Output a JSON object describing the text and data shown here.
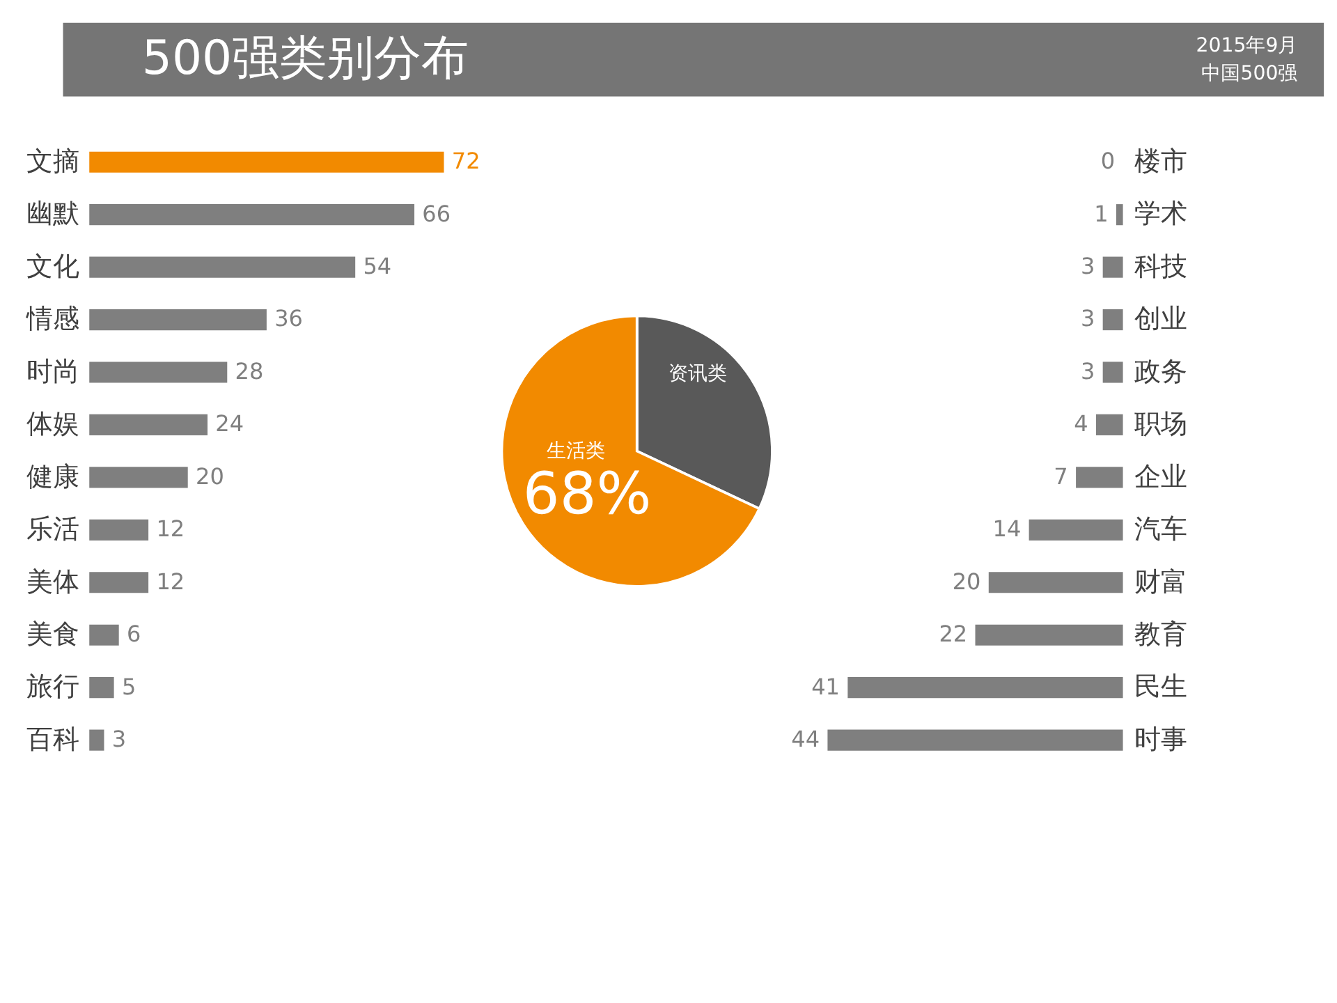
{
  "chart_data": [
    {
      "type": "bar",
      "orientation": "horizontal",
      "title": "500强类别分布",
      "annotations": [
        "2015年9月",
        "中国500强"
      ],
      "categories": [
        "文摘",
        "幽默",
        "文化",
        "情感",
        "时尚",
        "体娱",
        "健康",
        "乐活",
        "美体",
        "美食",
        "旅行",
        "百科"
      ],
      "values": [
        72,
        66,
        54,
        36,
        28,
        24,
        20,
        12,
        12,
        6,
        5,
        3
      ],
      "colors": [
        "#f28a00",
        "#7f7f7f",
        "#7f7f7f",
        "#7f7f7f",
        "#7f7f7f",
        "#7f7f7f",
        "#7f7f7f",
        "#7f7f7f",
        "#7f7f7f",
        "#7f7f7f",
        "#7f7f7f",
        "#7f7f7f"
      ],
      "tick_labels": "y",
      "data_labels": true
    },
    {
      "type": "pie",
      "categories": [
        "资讯类",
        "生活类"
      ],
      "values": [
        32,
        68
      ],
      "colors": [
        "#595959",
        "#f28a00"
      ],
      "value_labels": [
        null,
        "68%"
      ]
    },
    {
      "type": "bar",
      "orientation": "horizontal",
      "categories": [
        "楼市",
        "学术",
        "科技",
        "创业",
        "政务",
        "职场",
        "企业",
        "汽车",
        "财富",
        "教育",
        "民生",
        "时事"
      ],
      "values": [
        0,
        1,
        3,
        3,
        3,
        4,
        7,
        14,
        20,
        22,
        41,
        44
      ],
      "colors": [
        "#7f7f7f",
        "#7f7f7f",
        "#7f7f7f",
        "#7f7f7f",
        "#7f7f7f",
        "#7f7f7f",
        "#7f7f7f",
        "#7f7f7f",
        "#7f7f7f",
        "#7f7f7f",
        "#7f7f7f",
        "#7f7f7f"
      ],
      "tick_labels": "y",
      "data_labels": true
    }
  ]
}
